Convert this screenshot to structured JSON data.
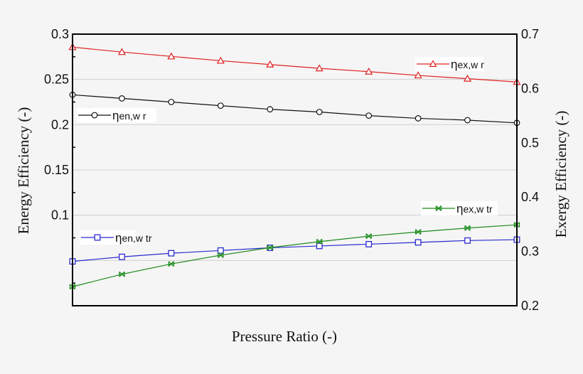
{
  "chart_data": {
    "type": "line",
    "title": "",
    "xlabel": "Pressure Ratio (-)",
    "ylabel": "Energy Efficiency (-)",
    "ylabel_right": "Exergy Efficiency (-)",
    "x": [
      1,
      2,
      3,
      4,
      5,
      6,
      7,
      8,
      9,
      10
    ],
    "xticks_shown": false,
    "ylim": [
      0,
      0.3
    ],
    "ylim_right": [
      0.2,
      0.7
    ],
    "yticks": [
      "0.1",
      "0.15",
      "0.2",
      "0.25",
      "0.3"
    ],
    "yticks_right": [
      "0.2",
      "0.3",
      "0.4",
      "0.5",
      "0.6",
      "0.7"
    ],
    "grid": true,
    "series": [
      {
        "name": "ηex,wr",
        "label_main": "η",
        "label_sub": "ex,w r",
        "axis": "right",
        "color": "#e02020",
        "marker": "triangle",
        "values": [
          0.676,
          0.667,
          0.659,
          0.651,
          0.644,
          0.637,
          0.631,
          0.624,
          0.618,
          0.612
        ]
      },
      {
        "name": "ηen,wr",
        "label_main": "η",
        "label_sub": "en,w r",
        "axis": "left",
        "color": "#111111",
        "marker": "circle",
        "values": [
          0.233,
          0.229,
          0.225,
          0.221,
          0.217,
          0.214,
          0.21,
          0.207,
          0.205,
          0.202
        ]
      },
      {
        "name": "ηen,wtr",
        "label_main": "η",
        "label_sub": "en,w tr",
        "axis": "left",
        "color": "#2a2ad0",
        "marker": "square",
        "values": [
          0.049,
          0.054,
          0.058,
          0.061,
          0.064,
          0.066,
          0.068,
          0.07,
          0.072,
          0.073
        ]
      },
      {
        "name": "ηex,wtr",
        "label_main": "η",
        "label_sub": "ex,w tr",
        "axis": "right",
        "color": "#1a8a1a",
        "marker": "x-box",
        "values": [
          0.235,
          0.258,
          0.277,
          0.293,
          0.307,
          0.318,
          0.328,
          0.336,
          0.343,
          0.349
        ]
      }
    ]
  }
}
